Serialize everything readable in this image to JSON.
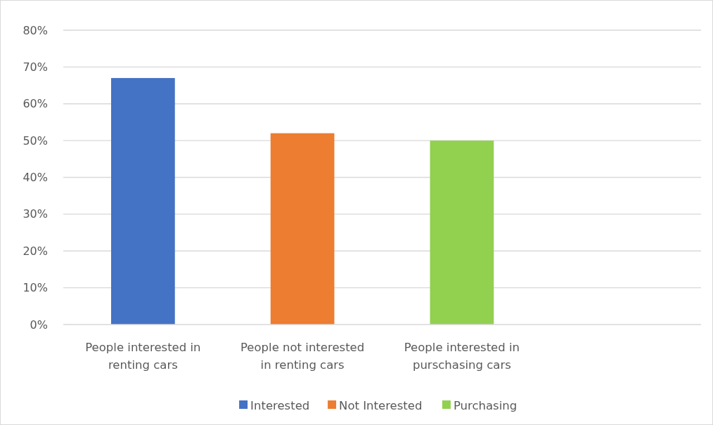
{
  "chart_data": {
    "type": "bar",
    "stacked": true,
    "categories": [
      "People interested in renting cars",
      "People not interested in renting cars",
      "People interested in purschasing cars",
      null
    ],
    "series": [
      {
        "name": "Interested",
        "color": "#4472c4",
        "values": [
          67,
          null,
          null,
          null
        ]
      },
      {
        "name": "Not Interested",
        "color": "#ed7d31",
        "values": [
          null,
          52,
          null,
          null
        ]
      },
      {
        "name": "Purchasing",
        "color": "#92d050",
        "values": [
          null,
          null,
          50,
          null
        ]
      }
    ],
    "ylim": [
      0,
      80
    ],
    "yticks": [
      {
        "value": 0,
        "label": "0%"
      },
      {
        "value": 10,
        "label": "10%"
      },
      {
        "value": 20,
        "label": "20%"
      },
      {
        "value": 30,
        "label": "30%"
      },
      {
        "value": 40,
        "label": "40%"
      },
      {
        "value": 50,
        "label": "50%"
      },
      {
        "value": 60,
        "label": "60%"
      },
      {
        "value": 70,
        "label": "70%"
      },
      {
        "value": 80,
        "label": "80%"
      }
    ],
    "grid": "y",
    "legend": "bottom"
  }
}
